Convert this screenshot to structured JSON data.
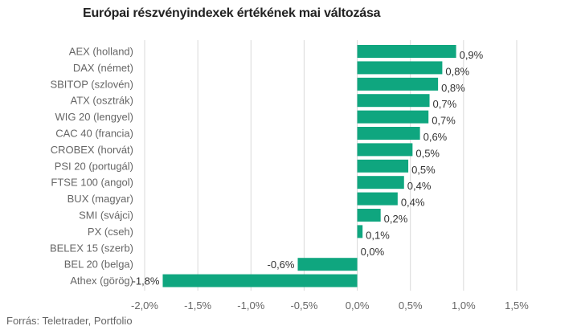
{
  "title": "Európai részvényindexek értékének mai változása",
  "source": "Forrás: Teletrader, Portfolio",
  "colors": {
    "bar": "#0fa67f",
    "grid": "#d9d9d9"
  },
  "chart_data": {
    "type": "bar",
    "orientation": "horizontal",
    "title": "Európai részvényindexek értékének mai változása",
    "xlabel": "",
    "ylabel": "",
    "xlim": [
      -2.0,
      1.5
    ],
    "grid": true,
    "legend": "none",
    "categories": [
      "AEX (holland)",
      "DAX (német)",
      "SBITOP (szlovén)",
      "ATX (osztrák)",
      "WIG 20 (lengyel)",
      "CAC 40 (francia)",
      "CROBEX (horvát)",
      "PSI 20 (portugál)",
      "FTSE 100 (angol)",
      "BUX (magyar)",
      "SMI (svájci)",
      "PX (cseh)",
      "BELEX 15 (szerb)",
      "BEL 20 (belga)",
      "Athex (görög)"
    ],
    "values": [
      0.93,
      0.8,
      0.76,
      0.68,
      0.67,
      0.59,
      0.52,
      0.48,
      0.44,
      0.38,
      0.22,
      0.05,
      0.0,
      -0.56,
      -1.83
    ],
    "value_labels": [
      "0,9%",
      "0,8%",
      "0,8%",
      "0,7%",
      "0,7%",
      "0,6%",
      "0,5%",
      "0,5%",
      "0,4%",
      "0,4%",
      "0,2%",
      "0,1%",
      "0,0%",
      "-0,6%",
      "-1,8%"
    ],
    "ticks": [
      -2.0,
      -1.5,
      -1.0,
      -0.5,
      0.0,
      0.5,
      1.0,
      1.5
    ],
    "tick_labels": [
      "-2,0%",
      "-1,5%",
      "-1,0%",
      "-0,5%",
      "0,0%",
      "0,5%",
      "1,0%",
      "1,5%"
    ]
  }
}
